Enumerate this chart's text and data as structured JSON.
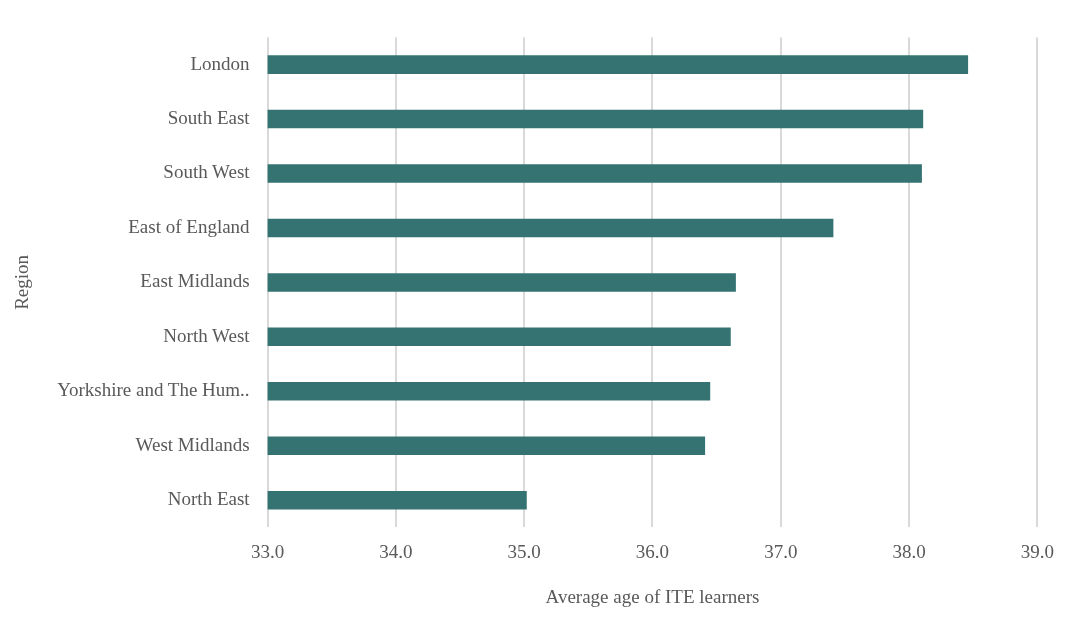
{
  "chart_data": {
    "type": "bar",
    "orientation": "horizontal",
    "xlabel": "Average age of ITE learners",
    "ylabel": "Region",
    "categories": [
      "London",
      "South East",
      "South West",
      "East of England",
      "East Midlands",
      "North West",
      "Yorkshire and The Hum..",
      "West Midlands",
      "North East"
    ],
    "values": [
      38.46,
      38.11,
      38.1,
      37.41,
      36.65,
      36.61,
      36.45,
      36.41,
      35.02
    ],
    "color": "#347371",
    "xlim": [
      33,
      39
    ],
    "xticks": [
      {
        "value": 33,
        "label": "33.0"
      },
      {
        "value": 34,
        "label": "34.0"
      },
      {
        "value": 35,
        "label": "35.0"
      },
      {
        "value": 36,
        "label": "36.0"
      },
      {
        "value": 37,
        "label": "37.0"
      },
      {
        "value": 38,
        "label": "38.0"
      },
      {
        "value": 39,
        "label": "39.0"
      }
    ],
    "grid": "x",
    "legend": false
  }
}
